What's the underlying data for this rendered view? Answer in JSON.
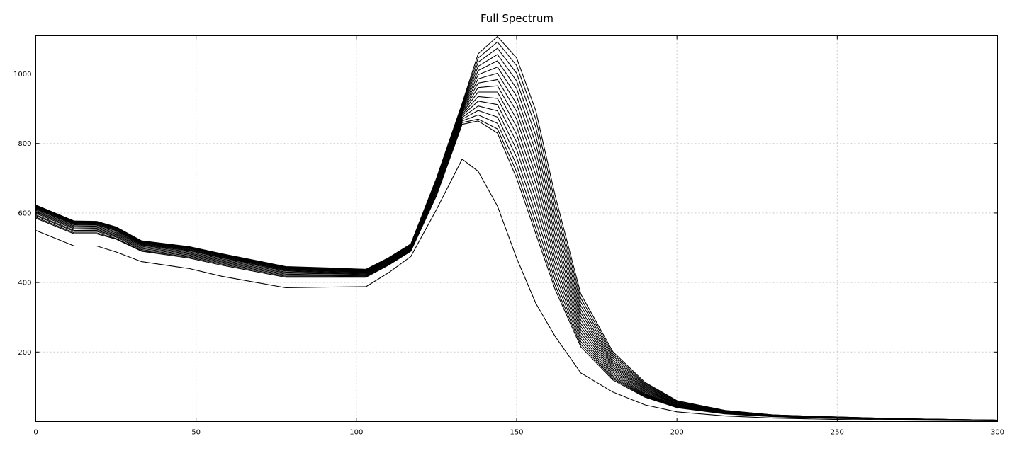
{
  "chart_data": {
    "type": "line",
    "title": "Full Spectrum",
    "xlabel": "",
    "ylabel": "",
    "xlim": [
      0,
      300
    ],
    "ylim": [
      0,
      1110
    ],
    "x_ticks": [
      0,
      50,
      100,
      150,
      200,
      250,
      300
    ],
    "y_ticks": [
      200,
      400,
      600,
      800,
      1000
    ],
    "grid": true,
    "legend": "none",
    "line_color": "#000000",
    "x": [
      0,
      12,
      19,
      25,
      33,
      48,
      58,
      78,
      92,
      103,
      110,
      117,
      125,
      133,
      138,
      144,
      150,
      156,
      162,
      170,
      180,
      190,
      200,
      215,
      230,
      250,
      270,
      300
    ],
    "series": [
      {
        "values": [
          550,
          505,
          505,
          488,
          460,
          440,
          418,
          385,
          387,
          388,
          428,
          475,
          610,
          755,
          720,
          620,
          470,
          340,
          245,
          140,
          85,
          48,
          28,
          16,
          10,
          6,
          4,
          2
        ]
      },
      {
        "values": [
          585,
          540,
          540,
          525,
          490,
          470,
          450,
          415,
          415,
          415,
          450,
          490,
          650,
          855,
          865,
          830,
          700,
          540,
          380,
          215,
          120,
          70,
          40,
          22,
          14,
          9,
          6,
          3
        ]
      },
      {
        "values": [
          588,
          543,
          543,
          527,
          492,
          473,
          453,
          418,
          418,
          417,
          452,
          492,
          655,
          860,
          870,
          842,
          718,
          555,
          392,
          222,
          124,
          72,
          41,
          23,
          14,
          9,
          6,
          3
        ]
      },
      {
        "values": [
          592,
          547,
          547,
          531,
          495,
          476,
          456,
          421,
          420,
          419,
          454,
          494,
          660,
          865,
          882,
          858,
          738,
          575,
          407,
          230,
          128,
          74,
          42,
          24,
          15,
          10,
          6,
          3
        ]
      },
      {
        "values": [
          595,
          550,
          550,
          534,
          498,
          479,
          459,
          424,
          422,
          421,
          456,
          496,
          665,
          870,
          895,
          876,
          760,
          596,
          422,
          238,
          132,
          76,
          43,
          24,
          15,
          10,
          6,
          3
        ]
      },
      {
        "values": [
          599,
          554,
          553,
          537,
          501,
          482,
          462,
          427,
          425,
          423,
          458,
          498,
          670,
          875,
          908,
          894,
          782,
          618,
          438,
          246,
          137,
          78,
          44,
          25,
          15,
          10,
          6,
          3
        ]
      },
      {
        "values": [
          602,
          557,
          556,
          540,
          504,
          485,
          465,
          430,
          427,
          425,
          460,
          500,
          675,
          880,
          922,
          912,
          804,
          640,
          454,
          255,
          142,
          80,
          45,
          25,
          16,
          10,
          7,
          3
        ]
      },
      {
        "values": [
          605,
          560,
          559,
          543,
          507,
          488,
          468,
          433,
          429,
          427,
          461,
          501,
          678,
          884,
          935,
          930,
          826,
          662,
          470,
          264,
          147,
          83,
          46,
          26,
          16,
          11,
          7,
          3
        ]
      },
      {
        "values": [
          608,
          563,
          562,
          546,
          509,
          491,
          471,
          435,
          431,
          429,
          462,
          502,
          681,
          888,
          948,
          948,
          848,
          685,
          487,
          273,
          152,
          86,
          48,
          27,
          16,
          11,
          7,
          3
        ]
      },
      {
        "values": [
          611,
          566,
          565,
          549,
          511,
          493,
          473,
          437,
          433,
          430,
          463,
          503,
          684,
          891,
          961,
          966,
          870,
          708,
          504,
          282,
          157,
          89,
          49,
          27,
          17,
          11,
          7,
          3
        ]
      },
      {
        "values": [
          613,
          568,
          567,
          551,
          513,
          495,
          475,
          439,
          434,
          431,
          464,
          504,
          686,
          894,
          974,
          984,
          892,
          730,
          521,
          292,
          162,
          92,
          50,
          28,
          17,
          11,
          7,
          3
        ]
      },
      {
        "values": [
          615,
          570,
          569,
          553,
          514,
          497,
          477,
          440,
          436,
          432,
          465,
          505,
          688,
          897,
          986,
          1002,
          914,
          753,
          538,
          302,
          167,
          95,
          51,
          28,
          17,
          12,
          7,
          3
        ]
      },
      {
        "values": [
          617,
          572,
          571,
          555,
          515,
          498,
          478,
          441,
          437,
          433,
          466,
          506,
          690,
          900,
          998,
          1020,
          936,
          776,
          556,
          312,
          172,
          98,
          53,
          29,
          18,
          12,
          8,
          3
        ]
      },
      {
        "values": [
          619,
          573,
          572,
          556,
          516,
          499,
          479,
          442,
          438,
          434,
          467,
          507,
          692,
          903,
          1010,
          1038,
          958,
          799,
          574,
          322,
          177,
          101,
          54,
          30,
          18,
          12,
          8,
          4
        ]
      },
      {
        "values": [
          620,
          574,
          573,
          557,
          517,
          500,
          480,
          443,
          439,
          435,
          468,
          508,
          694,
          906,
          1022,
          1056,
          980,
          822,
          592,
          333,
          183,
          104,
          56,
          30,
          18,
          12,
          8,
          4
        ]
      },
      {
        "values": [
          621,
          575,
          574,
          558,
          518,
          501,
          481,
          444,
          440,
          436,
          469,
          509,
          696,
          909,
          1034,
          1074,
          1002,
          846,
          611,
          344,
          189,
          107,
          57,
          31,
          19,
          13,
          8,
          4
        ]
      },
      {
        "values": [
          622,
          576,
          575,
          559,
          519,
          502,
          482,
          445,
          441,
          437,
          470,
          510,
          698,
          912,
          1046,
          1092,
          1024,
          870,
          630,
          355,
          195,
          110,
          59,
          32,
          19,
          13,
          8,
          4
        ]
      },
      {
        "values": [
          623,
          577,
          576,
          560,
          520,
          503,
          483,
          446,
          442,
          438,
          471,
          511,
          700,
          915,
          1058,
          1108,
          1046,
          894,
          650,
          367,
          201,
          113,
          60,
          32,
          19,
          13,
          8,
          4
        ]
      }
    ]
  }
}
